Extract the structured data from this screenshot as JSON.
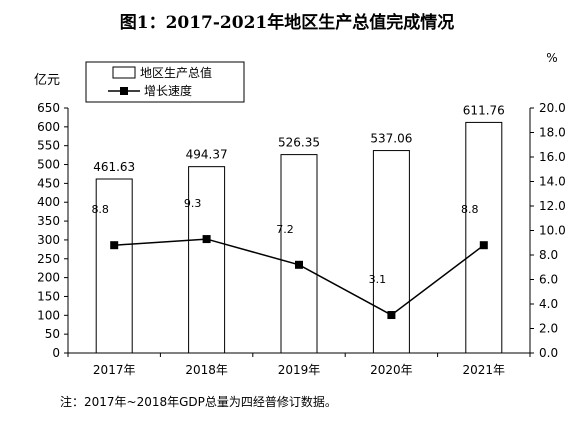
{
  "chart_data": {
    "type": "bar",
    "title": "图1：2017-2021年地区生产总值完成情况",
    "categories": [
      "2017年",
      "2018年",
      "2019年",
      "2020年",
      "2021年"
    ],
    "series": [
      {
        "name": "地区生产总值",
        "type": "bar",
        "axis": "left",
        "values": [
          461.63,
          494.37,
          526.35,
          537.06,
          611.76
        ],
        "labels": [
          "461.63",
          "494.37",
          "526.35",
          "537.06",
          "611.76"
        ]
      },
      {
        "name": "增长速度",
        "type": "line",
        "axis": "right",
        "values": [
          8.8,
          9.3,
          7.2,
          3.1,
          8.8
        ],
        "labels": [
          "8.8",
          "9.3",
          "7.2",
          "3.1",
          "8.8"
        ]
      }
    ],
    "y_left": {
      "label": "亿元",
      "ylim": [
        0,
        650
      ],
      "ticks": [
        "0",
        "50",
        "100",
        "150",
        "200",
        "250",
        "300",
        "350",
        "400",
        "450",
        "500",
        "550",
        "600",
        "650"
      ],
      "tick_values": [
        0,
        50,
        100,
        150,
        200,
        250,
        300,
        350,
        400,
        450,
        500,
        550,
        600,
        650
      ]
    },
    "y_right": {
      "label": "%",
      "ylim": [
        0,
        20
      ],
      "ticks": [
        "0.0",
        "2.0",
        "4.0",
        "6.0",
        "8.0",
        "10.0",
        "12.0",
        "14.0",
        "16.0",
        "18.0",
        "20.0"
      ],
      "tick_values": [
        0,
        2,
        4,
        6,
        8,
        10,
        12,
        14,
        16,
        18,
        20
      ]
    },
    "legend_position": "top-left",
    "grid": false
  },
  "note": "注：2017年~2018年GDP总量为四经普修订数据。",
  "colors": {
    "bar_fill": "#ffffff",
    "bar_stroke": "#000000",
    "line": "#000000",
    "marker": "#000000"
  }
}
